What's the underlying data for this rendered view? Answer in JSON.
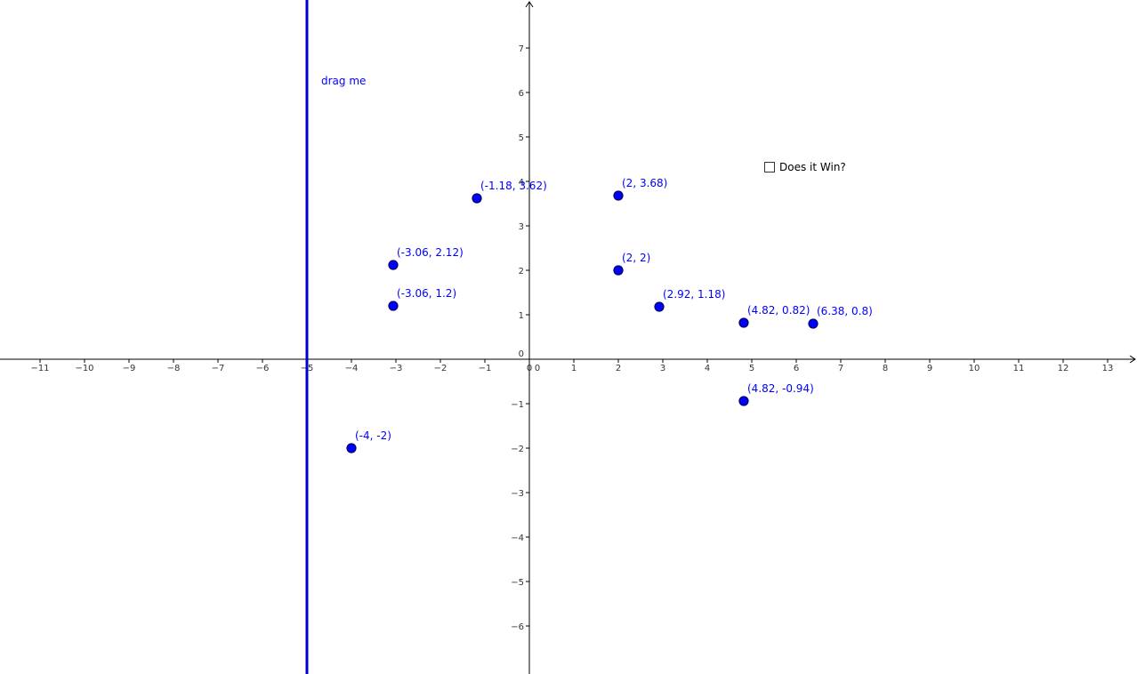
{
  "chart_data": {
    "type": "scatter",
    "title": "",
    "xlabel": "",
    "ylabel": "",
    "xlim": [
      -11.9,
      13.6
    ],
    "ylim": [
      -7.0,
      8.0
    ],
    "grid": false,
    "x_ticks": [
      -11,
      -10,
      -9,
      -8,
      -7,
      -6,
      -5,
      -4,
      -3,
      -2,
      -1,
      0,
      1,
      2,
      3,
      4,
      5,
      6,
      7,
      8,
      9,
      10,
      11,
      12,
      13
    ],
    "y_ticks": [
      -6,
      -5,
      -4,
      -3,
      -2,
      -1,
      0,
      1,
      2,
      3,
      4,
      5,
      6,
      7
    ],
    "points": [
      {
        "x": -1.18,
        "y": 3.62,
        "label": "(-1.18, 3.62)"
      },
      {
        "x": 2,
        "y": 3.68,
        "label": "(2, 3.68)"
      },
      {
        "x": -3.06,
        "y": 2.12,
        "label": "(-3.06, 2.12)"
      },
      {
        "x": 2,
        "y": 2,
        "label": "(2, 2)"
      },
      {
        "x": -3.06,
        "y": 1.2,
        "label": "(-3.06, 1.2)"
      },
      {
        "x": 2.92,
        "y": 1.18,
        "label": "(2.92, 1.18)"
      },
      {
        "x": 4.82,
        "y": 0.82,
        "label": "(4.82, 0.82)"
      },
      {
        "x": 6.38,
        "y": 0.8,
        "label": "(6.38, 0.8)"
      },
      {
        "x": 4.82,
        "y": -0.94,
        "label": "(4.82, -0.94)"
      },
      {
        "x": -4,
        "y": -2,
        "label": "(-4, -2)"
      }
    ],
    "vertical_line": {
      "x": -5,
      "label": "drag me"
    }
  },
  "checkbox": {
    "label": "Does it Win?",
    "checked": false
  },
  "colors": {
    "points": "#0000ff",
    "line": "#0000cc",
    "axes": "#000000"
  }
}
